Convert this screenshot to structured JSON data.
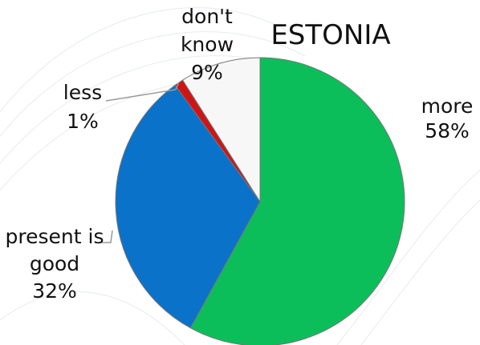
{
  "chart_data": {
    "type": "pie",
    "title": "ESTONIA",
    "start_angle_deg": 0,
    "direction": "clockwise",
    "slices": [
      {
        "category": "more",
        "value": 58,
        "label": "58%",
        "color": "#0bbe5a"
      },
      {
        "category": "present is good",
        "value": 32,
        "label": "32%",
        "color": "#0a72c9"
      },
      {
        "category": "less",
        "value": 1,
        "label": "1%",
        "color": "#d01414"
      },
      {
        "category": "don't know",
        "value": 9,
        "label": "9%",
        "color": "#f7f7f7"
      }
    ]
  }
}
